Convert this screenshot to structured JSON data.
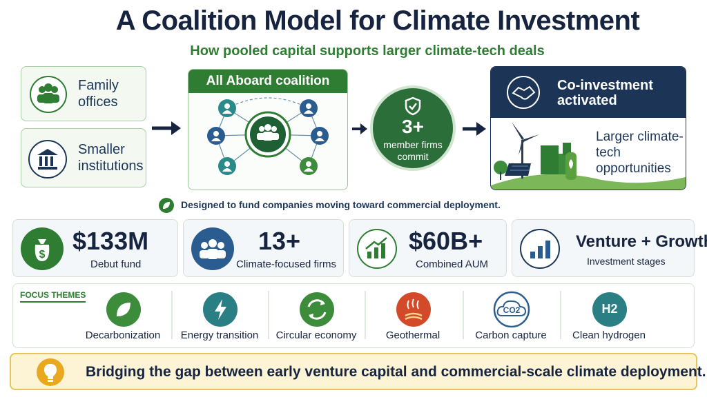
{
  "header": {
    "title": "A Coalition Model for Climate Investment",
    "subtitle": "How pooled capital supports larger climate-tech deals"
  },
  "sources": [
    "Family offices",
    "Smaller institutions"
  ],
  "coalition": {
    "title": "All Aboard coalition"
  },
  "commit": {
    "number": "3+",
    "label": "member firms commit"
  },
  "outcome": {
    "title": "Co-investment activated",
    "body": "Larger climate-tech opportunities"
  },
  "note": "Designed to fund companies moving toward commercial deployment.",
  "stats": [
    {
      "value": "$133M",
      "label": "Debut fund"
    },
    {
      "value": "13+",
      "label": "Climate-focused firms"
    },
    {
      "value": "$60B+",
      "label": "Combined AUM"
    },
    {
      "value": "Venture + Growth",
      "label": "Investment stages"
    }
  ],
  "themes": {
    "title": "FOCUS THEMES",
    "items": [
      {
        "label": "Decarbonization"
      },
      {
        "label": "Energy transition"
      },
      {
        "label": "Circular economy"
      },
      {
        "label": "Geothermal"
      },
      {
        "label": "Carbon capture",
        "icon_text": "CO2"
      },
      {
        "label": "Clean hydrogen",
        "icon_text": "H2"
      }
    ]
  },
  "footer": "Bridging the gap between early venture capital and commercial-scale climate deployment."
}
